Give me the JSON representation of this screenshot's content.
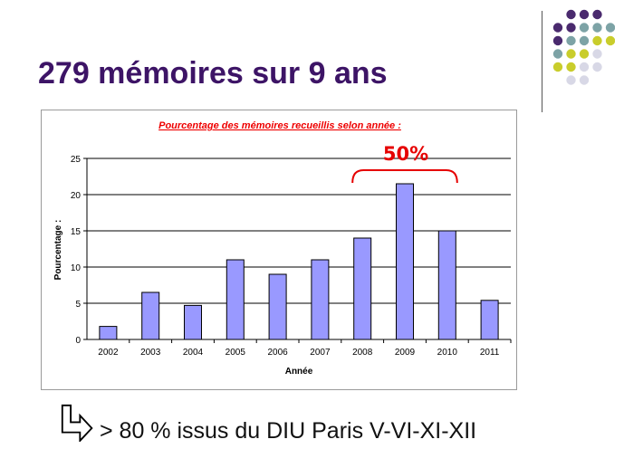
{
  "slide": {
    "title": "279 mémoires sur 9 ans",
    "footer_text": "> 80 % issus du DIU Paris V-VI-XI-XII"
  },
  "decoration": {
    "dot_colors": {
      "purple": "#4a2a6e",
      "teal": "#7da3a6",
      "yellow": "#c9cd2c",
      "lavender": "#d8d8e6"
    }
  },
  "chart_data": {
    "type": "bar",
    "title": "Pourcentage des mémoires recueillis selon année :",
    "xlabel": "Année",
    "ylabel": "Pourcentage :",
    "categories": [
      "2002",
      "2003",
      "2004",
      "2005",
      "2006",
      "2007",
      "2008",
      "2009",
      "2010",
      "2011"
    ],
    "values": [
      1.8,
      6.5,
      4.7,
      11,
      9,
      11,
      14,
      21.5,
      15,
      5.4
    ],
    "ylim": [
      0,
      25
    ],
    "yticks": [
      0,
      5,
      10,
      15,
      20,
      25
    ],
    "grid": true,
    "bar_color": "#9999ff",
    "title_color": "#ee0000",
    "annotation": {
      "text": "50%",
      "span": [
        "2008",
        "2010"
      ],
      "color": "#e60000"
    }
  }
}
